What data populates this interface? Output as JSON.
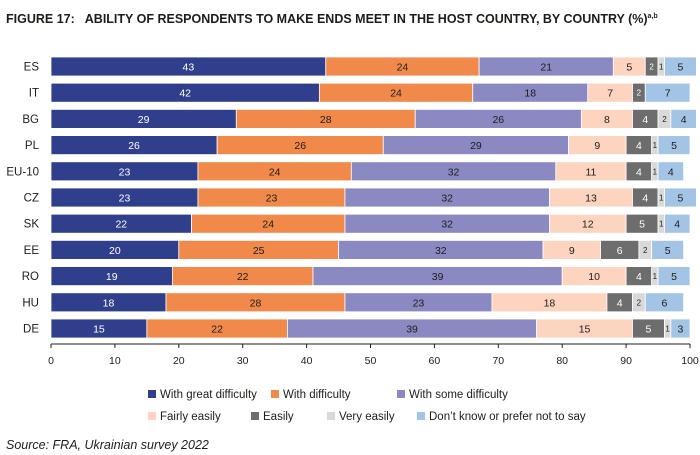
{
  "figure_number": "FIGURE 17:",
  "title": "ABILITY OF RESPONDENTS TO MAKE ENDS MEET IN THE HOST COUNTRY, BY COUNTRY (%)",
  "title_sup": "a,b",
  "source": "Source:   FRA, Ukrainian survey 2022",
  "chart_data": {
    "type": "bar",
    "orientation": "horizontal",
    "stacked": true,
    "categories": [
      "ES",
      "IT",
      "BG",
      "PL",
      "EU-10",
      "CZ",
      "SK",
      "EE",
      "RO",
      "HU",
      "DE"
    ],
    "xlim": [
      0,
      100
    ],
    "xticks": [
      0,
      10,
      20,
      30,
      40,
      50,
      60,
      70,
      80,
      90,
      100
    ],
    "grid": false,
    "legend_position": "bottom",
    "series": [
      {
        "name": "With great difficulty",
        "color": "#2f3f8c",
        "label_color": "#ffffff",
        "values": [
          43,
          42,
          29,
          26,
          23,
          23,
          22,
          20,
          19,
          18,
          15
        ],
        "labels": [
          "43",
          "42",
          "29",
          "26",
          "23",
          "23",
          "22",
          "20",
          "19",
          "18",
          "15"
        ]
      },
      {
        "name": "With difficulty",
        "color": "#f0894a",
        "label_color": "#1d1d1b",
        "values": [
          24,
          24,
          28,
          26,
          24,
          23,
          24,
          25,
          22,
          28,
          22
        ],
        "labels": [
          "24",
          "24",
          "28",
          "26",
          "24",
          "23",
          "24",
          "25",
          "22",
          "28",
          "22"
        ]
      },
      {
        "name": "With some difficulty",
        "color": "#8a89c2",
        "label_color": "#1d1d1b",
        "values": [
          21,
          18,
          26,
          29,
          32,
          32,
          32,
          32,
          39,
          23,
          39
        ],
        "labels": [
          "21",
          "18",
          "26",
          "29",
          "32",
          "32",
          "32",
          "32",
          "39",
          "23",
          "39"
        ]
      },
      {
        "name": "Fairly easily",
        "color": "#fcd4bf",
        "label_color": "#1d1d1b",
        "values": [
          5,
          7,
          8,
          9,
          11,
          13,
          12,
          9,
          10,
          18,
          15
        ],
        "labels": [
          "5",
          "7",
          "8",
          "9",
          "11",
          "13",
          "12",
          "9",
          "10",
          "18",
          "15"
        ]
      },
      {
        "name": "Easily",
        "color": "#6d6d6d",
        "label_color": "#ffffff",
        "values": [
          2,
          2,
          4,
          4,
          4,
          4,
          5,
          6,
          4,
          4,
          5
        ],
        "labels": [
          "2",
          "2",
          "4",
          "4",
          "4",
          "4",
          "5",
          "6",
          "4",
          "4",
          "5"
        ]
      },
      {
        "name": "Very easily",
        "color": "#d9d9d9",
        "label_color": "#1d1d1b",
        "values": [
          1,
          0,
          2,
          1,
          1,
          1,
          1,
          2,
          1,
          2,
          1
        ],
        "labels": [
          "1",
          "",
          "2",
          "1",
          "1",
          "1",
          "1",
          "2",
          "1",
          "2",
          "1"
        ]
      },
      {
        "name": "Don’t know or prefer not to say",
        "color": "#a4c4e6",
        "label_color": "#1d1d1b",
        "values": [
          5,
          7,
          4,
          5,
          4,
          5,
          4,
          5,
          5,
          6,
          3
        ],
        "labels": [
          "5",
          "7",
          "4",
          "5",
          "4",
          "5",
          "4",
          "5",
          "5",
          "6",
          "3"
        ]
      }
    ]
  }
}
